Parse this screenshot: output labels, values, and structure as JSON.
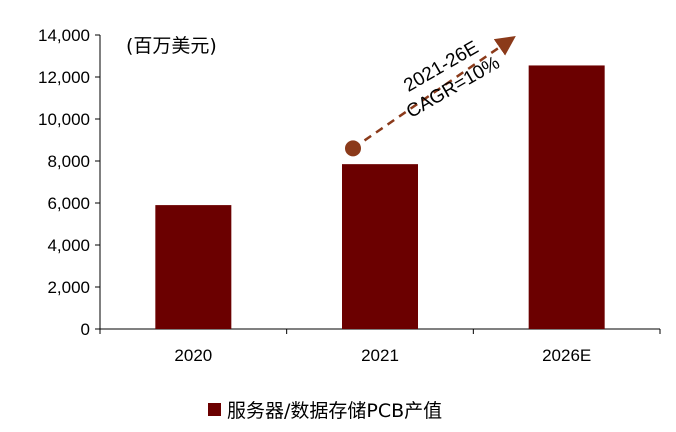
{
  "chart_data": {
    "type": "bar",
    "categories": [
      "2020",
      "2021",
      "2026E"
    ],
    "series": [
      {
        "name": "服务器/数据存储PCB产值",
        "values": [
          5900,
          7850,
          12550
        ]
      }
    ],
    "ylim": [
      0,
      14000
    ],
    "yticks": [
      "0",
      "2,000",
      "4,000",
      "6,000",
      "8,000",
      "10,000",
      "12,000",
      "14,000"
    ],
    "unit_label": "(百万美元)",
    "annotation": {
      "line1": "2021-26E",
      "line2": "CAGR=10%"
    },
    "colors": {
      "bar": "#6b0000",
      "arrow": "#8b3a1a"
    },
    "grid": false,
    "legend_position": "bottom"
  }
}
